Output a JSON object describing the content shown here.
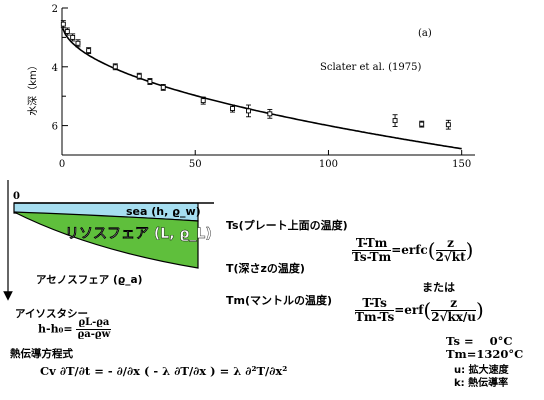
{
  "chart_data": {
    "type": "scatter",
    "panel_label": "(a)",
    "citation": "Sclater et al. (1975)",
    "ylabel": "水深（km）",
    "xlim": [
      0,
      155
    ],
    "ylim": [
      2,
      7
    ],
    "y_inverted": true,
    "x_ticks": [
      0,
      50,
      100,
      150
    ],
    "y_ticks": [
      2,
      4,
      6
    ],
    "y_minor_ticks": [
      3,
      5
    ],
    "grid": false,
    "points": [
      {
        "x": 0.5,
        "y": 2.55,
        "err": 0.12
      },
      {
        "x": 2,
        "y": 2.8,
        "err": 0.12
      },
      {
        "x": 4,
        "y": 3.0,
        "err": 0.12
      },
      {
        "x": 6,
        "y": 3.2,
        "err": 0.12
      },
      {
        "x": 10,
        "y": 3.45,
        "err": 0.1
      },
      {
        "x": 20,
        "y": 4.0,
        "err": 0.1
      },
      {
        "x": 29,
        "y": 4.32,
        "err": 0.1
      },
      {
        "x": 33,
        "y": 4.5,
        "err": 0.1
      },
      {
        "x": 38,
        "y": 4.7,
        "err": 0.1
      },
      {
        "x": 53,
        "y": 5.15,
        "err": 0.12
      },
      {
        "x": 64,
        "y": 5.42,
        "err": 0.12
      },
      {
        "x": 70,
        "y": 5.5,
        "err": 0.2
      },
      {
        "x": 78,
        "y": 5.6,
        "err": 0.15
      },
      {
        "x": 125,
        "y": 5.83,
        "err": 0.2
      },
      {
        "x": 135,
        "y": 5.95,
        "err": 0.1
      },
      {
        "x": 145,
        "y": 5.97,
        "err": 0.15
      }
    ],
    "curve_formula": "d = 2.5 + 0.35*sqrt(t)"
  },
  "diagram": {
    "surface_label": "0",
    "sea_label": "sea (h, ϱ_w)",
    "lithosphere_label": "リソスフェア (L, ϱ_L)",
    "asthenosphere_label": "アセノスフェア (ϱ_a)",
    "ts_desc": "Ts(プレート上面の温度)",
    "t_desc": "T(深さzの温度)",
    "tm_desc": "Tm(マントルの温度)",
    "colors": {
      "sea": "#a6def0",
      "lithosphere": "#5fbf3c"
    }
  },
  "formulas": {
    "isostasy_title": "アイソスタシー",
    "isostasy_lhs": "h-h₀=",
    "isostasy_num": "ϱL-ϱa",
    "isostasy_den": "ϱa-ϱw",
    "heat_title": "熱伝導方程式",
    "heat_eq": "Cv ∂T/∂t = - ∂/∂x ( - λ ∂T/∂x ) = λ ∂²T/∂x²",
    "eq1_lhs_num": "T-Tm",
    "eq1_lhs_den": "Ts-Tm",
    "eq1_func": "=erfc",
    "eq1_arg_num": "z",
    "eq1_arg_den": "2√kt",
    "or_label": "または",
    "eq2_lhs_num": "T-Ts",
    "eq2_lhs_den": "Tm-Ts",
    "eq2_func": "=erf",
    "eq2_arg_num": "z",
    "eq2_arg_den": "2√kx/u",
    "ts_value": "Ts =    0°C",
    "tm_value": "Tm=1320°C",
    "u_label": "u: 拡大速度",
    "k_label": "k: 熱伝導率"
  }
}
